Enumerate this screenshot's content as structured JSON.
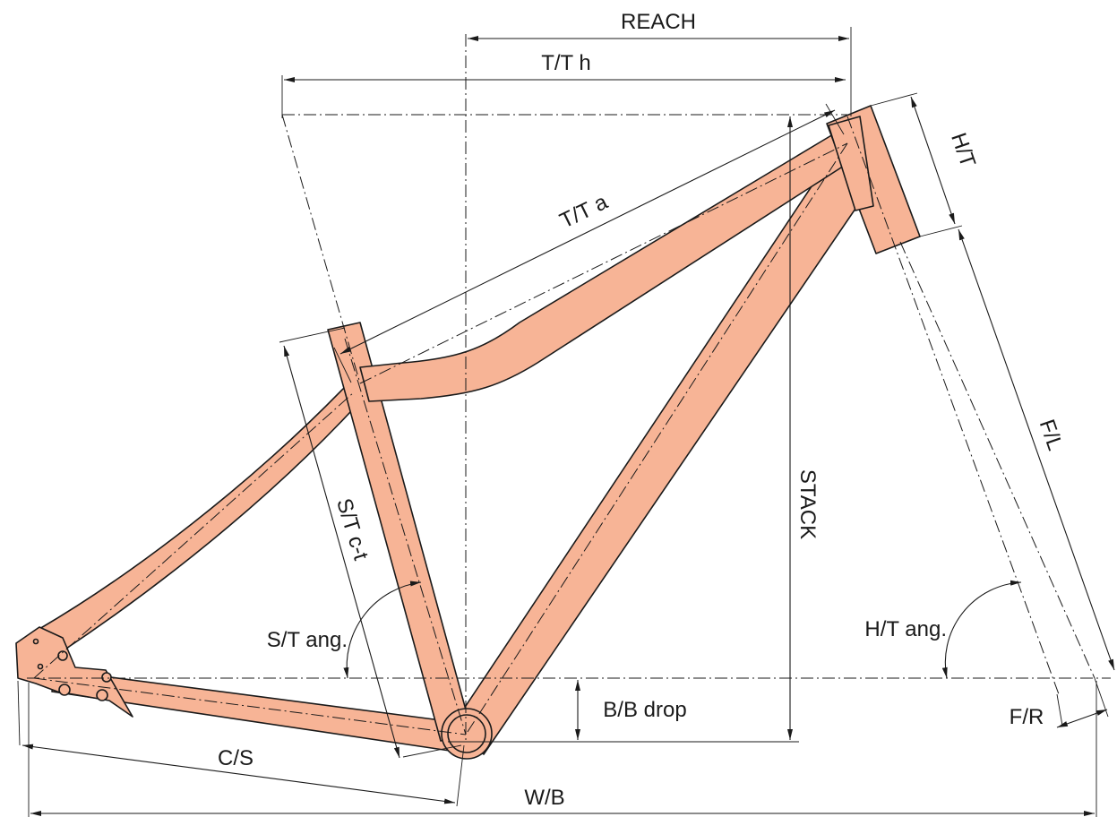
{
  "colors": {
    "frame_fill": "#f7b496",
    "line": "#1a1a1a",
    "background": "#ffffff"
  },
  "labels": {
    "reach": "REACH",
    "top_tube_horizontal": "T/T h",
    "head_tube": "H/T",
    "top_tube_actual": "T/T a",
    "fork_length": "F/L",
    "seat_tube_ct": "S/T c-t",
    "stack": "STACK",
    "seat_tube_angle": "S/T ang.",
    "head_tube_angle": "H/T ang.",
    "bb_drop": "B/B drop",
    "fork_rake": "F/R",
    "chainstay": "C/S",
    "wheelbase": "W/B"
  }
}
